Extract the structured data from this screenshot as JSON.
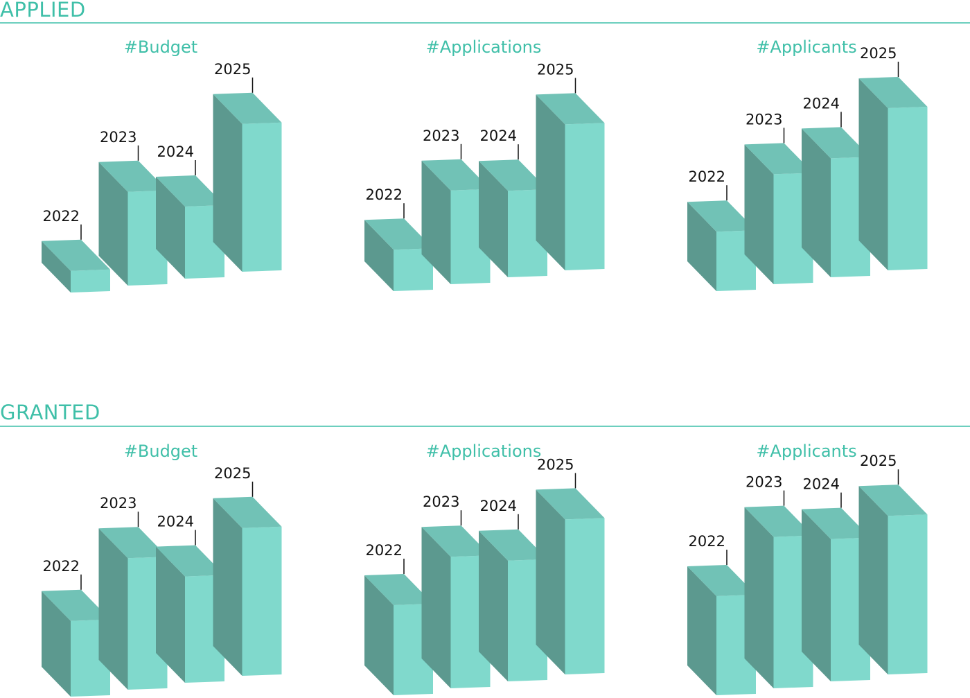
{
  "colors": {
    "accent": "#3fbfa8",
    "top": "#71c2b6",
    "front": "#80d9cc",
    "side": "#5c998f",
    "text": "#111111"
  },
  "sections": [
    {
      "title": "APPLIED"
    },
    {
      "title": "GRANTED"
    }
  ],
  "chart_data": [
    {
      "type": "bar",
      "section": "APPLIED",
      "title": "#Budget",
      "categories": [
        "2022",
        "2023",
        "2024",
        "2025"
      ],
      "values": [
        12,
        52,
        40,
        82
      ],
      "ylim": [
        0,
        100
      ]
    },
    {
      "type": "bar",
      "section": "APPLIED",
      "title": "#Applications",
      "categories": [
        "2022",
        "2023",
        "2024",
        "2025"
      ],
      "values": [
        23,
        52,
        48,
        81
      ],
      "ylim": [
        0,
        100
      ]
    },
    {
      "type": "bar",
      "section": "APPLIED",
      "title": "#Applicants",
      "categories": [
        "2022",
        "2023",
        "2024",
        "2025"
      ],
      "values": [
        33,
        61,
        66,
        90
      ],
      "ylim": [
        0,
        100
      ]
    },
    {
      "type": "bar",
      "section": "GRANTED",
      "title": "#Budget",
      "categories": [
        "2022",
        "2023",
        "2024",
        "2025"
      ],
      "values": [
        42,
        73,
        59,
        82
      ],
      "ylim": [
        0,
        100
      ]
    },
    {
      "type": "bar",
      "section": "GRANTED",
      "title": "#Applications",
      "categories": [
        "2022",
        "2023",
        "2024",
        "2025"
      ],
      "values": [
        50,
        73,
        67,
        86
      ],
      "ylim": [
        0,
        100
      ]
    },
    {
      "type": "bar",
      "section": "GRANTED",
      "title": "#Applicants",
      "categories": [
        "2022",
        "2023",
        "2024",
        "2025"
      ],
      "values": [
        55,
        84,
        79,
        88
      ],
      "ylim": [
        0,
        100
      ]
    }
  ]
}
